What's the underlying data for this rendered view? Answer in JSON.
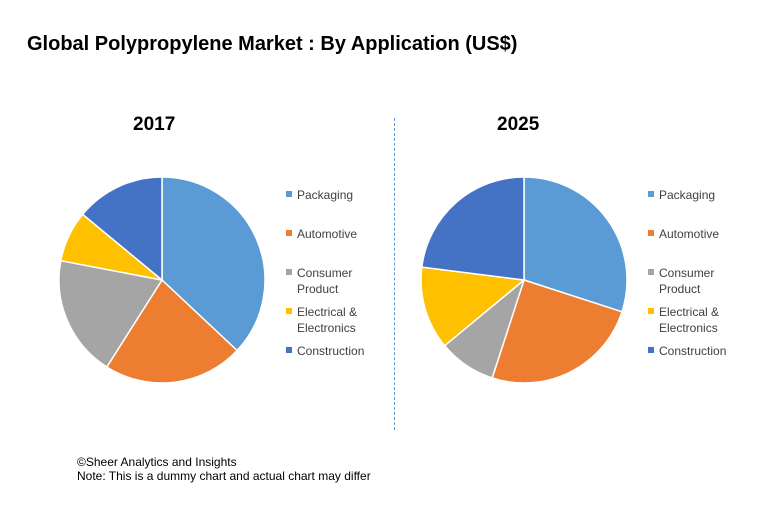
{
  "title": "Global Polypropylene Market : By Application (US$)",
  "colors": {
    "Packaging": "#5b9bd5",
    "Automotive": "#ed7d31",
    "Consumer Product": "#a5a5a5",
    "Electrical & Electronics": "#ffc000",
    "Construction": "#4472c4"
  },
  "chart_data": [
    {
      "type": "pie",
      "title": "2017",
      "categories": [
        "Packaging",
        "Automotive",
        "Consumer Product",
        "Electrical & Electronics",
        "Construction"
      ],
      "values": [
        37,
        22,
        19,
        8,
        14
      ],
      "legend_position": "right"
    },
    {
      "type": "pie",
      "title": "2025",
      "categories": [
        "Packaging",
        "Automotive",
        "Consumer Product",
        "Electrical & Electronics",
        "Construction"
      ],
      "values": [
        30,
        25,
        9,
        13,
        23
      ],
      "legend_position": "right"
    }
  ],
  "footer": {
    "copyright": "©Sheer Analytics and Insights",
    "note": "Note: This is a dummy chart and actual chart may differ"
  }
}
